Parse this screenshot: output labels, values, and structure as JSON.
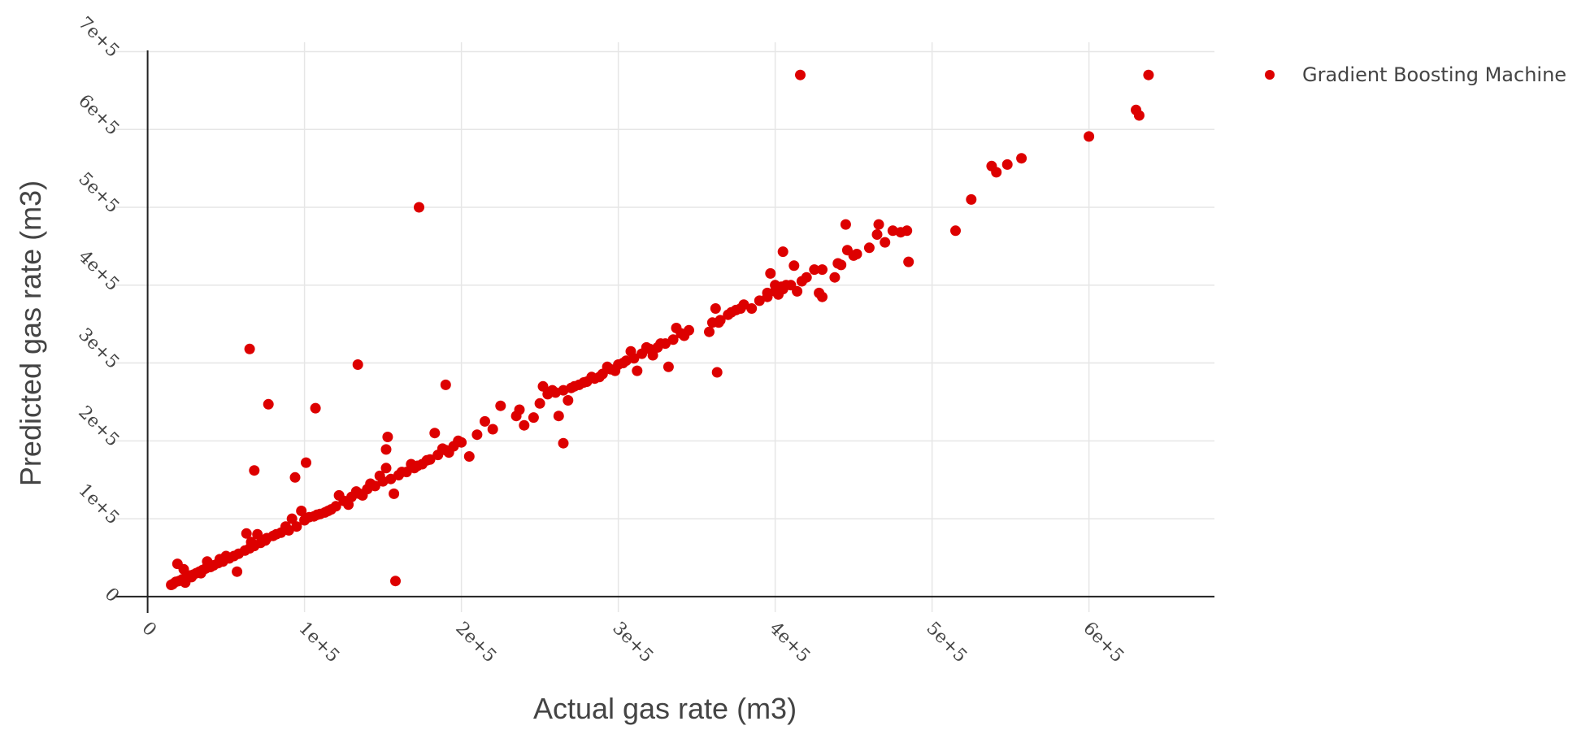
{
  "chart_data": {
    "type": "scatter",
    "xlabel": "Actual gas rate (m3)",
    "ylabel": "Predicted gas rate (m3)",
    "xlim": [
      -20000,
      680000
    ],
    "ylim": [
      -20000,
      712000
    ],
    "x_ticks": [
      {
        "value": 0,
        "label": "0"
      },
      {
        "value": 100000,
        "label": "1e+5"
      },
      {
        "value": 200000,
        "label": "2e+5"
      },
      {
        "value": 300000,
        "label": "3e+5"
      },
      {
        "value": 400000,
        "label": "4e+5"
      },
      {
        "value": 500000,
        "label": "5e+5"
      },
      {
        "value": 600000,
        "label": "6e+5"
      }
    ],
    "y_ticks": [
      {
        "value": 0,
        "label": "0"
      },
      {
        "value": 100000,
        "label": "1e+5"
      },
      {
        "value": 200000,
        "label": "2e+5"
      },
      {
        "value": 300000,
        "label": "3e+5"
      },
      {
        "value": 400000,
        "label": "4e+5"
      },
      {
        "value": 500000,
        "label": "5e+5"
      },
      {
        "value": 600000,
        "label": "6e+5"
      },
      {
        "value": 700000,
        "label": "7e+5"
      }
    ],
    "grid": true,
    "legend_position": "top-right",
    "series": [
      {
        "name": "Gradient Boosting Machine",
        "color": "#dd0000",
        "points": [
          [
            16000,
            16000
          ],
          [
            18000,
            19000
          ],
          [
            20000,
            20000
          ],
          [
            22000,
            22000
          ],
          [
            24000,
            18000
          ],
          [
            25000,
            25000
          ],
          [
            27000,
            27000
          ],
          [
            29000,
            28000
          ],
          [
            31000,
            30000
          ],
          [
            33000,
            32000
          ],
          [
            35000,
            34000
          ],
          [
            37000,
            36000
          ],
          [
            40000,
            38000
          ],
          [
            42000,
            40000
          ],
          [
            45000,
            43000
          ],
          [
            48000,
            45000
          ],
          [
            52000,
            49000
          ],
          [
            55000,
            52000
          ],
          [
            58000,
            55000
          ],
          [
            62000,
            59000
          ],
          [
            65000,
            62000
          ],
          [
            68000,
            65000
          ],
          [
            72000,
            69000
          ],
          [
            75000,
            72000
          ],
          [
            80000,
            78000
          ],
          [
            85000,
            82000
          ],
          [
            90000,
            85000
          ],
          [
            95000,
            90000
          ],
          [
            100000,
            98000
          ],
          [
            103000,
            102000
          ],
          [
            106000,
            103000
          ],
          [
            110000,
            106000
          ],
          [
            113000,
            108000
          ],
          [
            117000,
            112000
          ],
          [
            120000,
            116000
          ],
          [
            125000,
            123000
          ],
          [
            130000,
            128000
          ],
          [
            135000,
            132000
          ],
          [
            140000,
            138000
          ],
          [
            145000,
            142000
          ],
          [
            150000,
            148000
          ],
          [
            155000,
            151000
          ],
          [
            160000,
            156000
          ],
          [
            165000,
            160000
          ],
          [
            170000,
            165000
          ],
          [
            175000,
            170000
          ],
          [
            180000,
            176000
          ],
          [
            185000,
            182000
          ],
          [
            190000,
            188000
          ],
          [
            195000,
            193000
          ],
          [
            200000,
            198000
          ],
          [
            210000,
            208000
          ],
          [
            220000,
            215000
          ],
          [
            235000,
            232000
          ],
          [
            250000,
            248000
          ],
          [
            255000,
            260000
          ],
          [
            260000,
            262000
          ],
          [
            265000,
            265000
          ],
          [
            270000,
            268000
          ],
          [
            275000,
            272000
          ],
          [
            280000,
            276000
          ],
          [
            285000,
            280000
          ],
          [
            290000,
            286000
          ],
          [
            295000,
            292000
          ],
          [
            300000,
            298000
          ],
          [
            305000,
            303000
          ],
          [
            310000,
            306000
          ],
          [
            315000,
            312000
          ],
          [
            320000,
            318000
          ],
          [
            325000,
            320000
          ],
          [
            330000,
            325000
          ],
          [
            335000,
            330000
          ],
          [
            340000,
            338000
          ],
          [
            345000,
            342000
          ],
          [
            360000,
            352000
          ],
          [
            365000,
            355000
          ],
          [
            370000,
            362000
          ],
          [
            375000,
            368000
          ],
          [
            380000,
            375000
          ],
          [
            390000,
            380000
          ],
          [
            395000,
            385000
          ],
          [
            400000,
            392000
          ],
          [
            405000,
            395000
          ],
          [
            410000,
            400000
          ],
          [
            420000,
            410000
          ],
          [
            430000,
            420000
          ],
          [
            440000,
            428000
          ],
          [
            450000,
            438000
          ],
          [
            460000,
            448000
          ],
          [
            470000,
            455000
          ],
          [
            480000,
            468000
          ],
          [
            15000,
            15000
          ],
          [
            19000,
            42000
          ],
          [
            23000,
            35000
          ],
          [
            28000,
            25000
          ],
          [
            34000,
            30000
          ],
          [
            38000,
            45000
          ],
          [
            46000,
            48000
          ],
          [
            50000,
            52000
          ],
          [
            57000,
            32000
          ],
          [
            63000,
            81000
          ],
          [
            66000,
            70000
          ],
          [
            70000,
            80000
          ],
          [
            76000,
            75000
          ],
          [
            82000,
            80000
          ],
          [
            88000,
            90000
          ],
          [
            92000,
            100000
          ],
          [
            98000,
            110000
          ],
          [
            108000,
            105000
          ],
          [
            115000,
            110000
          ],
          [
            122000,
            130000
          ],
          [
            128000,
            118000
          ],
          [
            133000,
            135000
          ],
          [
            137000,
            130000
          ],
          [
            142000,
            145000
          ],
          [
            148000,
            155000
          ],
          [
            152000,
            165000
          ],
          [
            157000,
            132000
          ],
          [
            162000,
            160000
          ],
          [
            168000,
            170000
          ],
          [
            172000,
            168000
          ],
          [
            178000,
            175000
          ],
          [
            183000,
            210000
          ],
          [
            188000,
            190000
          ],
          [
            192000,
            185000
          ],
          [
            198000,
            200000
          ],
          [
            205000,
            180000
          ],
          [
            215000,
            225000
          ],
          [
            225000,
            245000
          ],
          [
            237000,
            240000
          ],
          [
            240000,
            220000
          ],
          [
            246000,
            230000
          ],
          [
            252000,
            270000
          ],
          [
            258000,
            265000
          ],
          [
            262000,
            232000
          ],
          [
            268000,
            252000
          ],
          [
            272000,
            270000
          ],
          [
            278000,
            275000
          ],
          [
            283000,
            282000
          ],
          [
            288000,
            282000
          ],
          [
            293000,
            295000
          ],
          [
            298000,
            290000
          ],
          [
            303000,
            300000
          ],
          [
            308000,
            315000
          ],
          [
            312000,
            290000
          ],
          [
            318000,
            320000
          ],
          [
            322000,
            310000
          ],
          [
            327000,
            325000
          ],
          [
            332000,
            295000
          ],
          [
            337000,
            345000
          ],
          [
            342000,
            335000
          ],
          [
            358000,
            340000
          ],
          [
            362000,
            370000
          ],
          [
            364000,
            352000
          ],
          [
            372000,
            365000
          ],
          [
            378000,
            370000
          ],
          [
            385000,
            370000
          ],
          [
            397000,
            415000
          ],
          [
            402000,
            388000
          ],
          [
            407000,
            400000
          ],
          [
            412000,
            425000
          ],
          [
            425000,
            420000
          ],
          [
            428000,
            390000
          ],
          [
            430000,
            385000
          ],
          [
            438000,
            410000
          ],
          [
            442000,
            426000
          ],
          [
            446000,
            445000
          ],
          [
            452000,
            440000
          ],
          [
            465000,
            465000
          ],
          [
            475000,
            470000
          ],
          [
            485000,
            430000
          ],
          [
            65000,
            318000
          ],
          [
            68000,
            162000
          ],
          [
            77000,
            247000
          ],
          [
            94000,
            153000
          ],
          [
            101000,
            172000
          ],
          [
            107000,
            242000
          ],
          [
            134000,
            298000
          ],
          [
            152000,
            189000
          ],
          [
            153000,
            205000
          ],
          [
            158000,
            20000
          ],
          [
            173000,
            500000
          ],
          [
            190000,
            272000
          ],
          [
            265000,
            197000
          ],
          [
            363000,
            288000
          ],
          [
            405000,
            443000
          ],
          [
            416000,
            670000
          ],
          [
            445000,
            478000
          ],
          [
            466000,
            478000
          ],
          [
            484000,
            470000
          ],
          [
            515000,
            470000
          ],
          [
            525000,
            510000
          ],
          [
            538000,
            553000
          ],
          [
            541000,
            545000
          ],
          [
            548000,
            555000
          ],
          [
            557000,
            563000
          ],
          [
            600000,
            591000
          ],
          [
            630000,
            625000
          ],
          [
            632000,
            618000
          ],
          [
            638000,
            670000
          ],
          [
            400000,
            400000
          ],
          [
            404000,
            398000
          ],
          [
            395000,
            390000
          ],
          [
            414000,
            392000
          ],
          [
            417000,
            405000
          ]
        ]
      }
    ]
  }
}
